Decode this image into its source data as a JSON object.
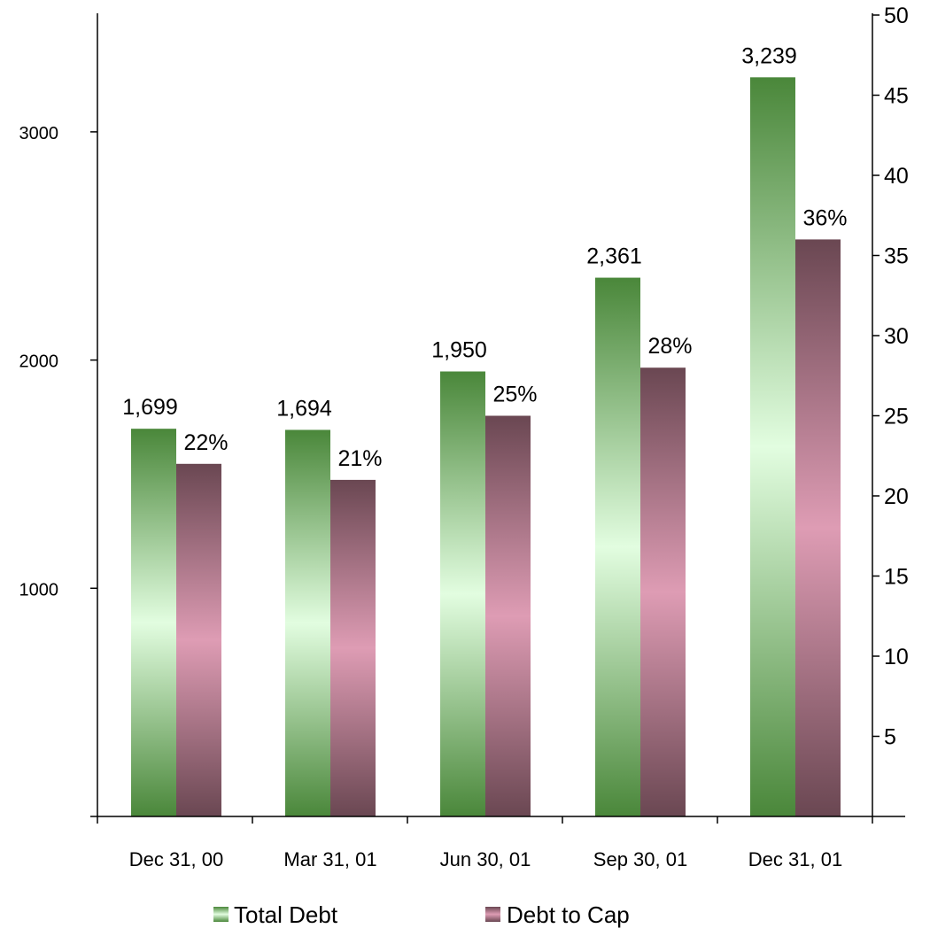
{
  "chart_data": {
    "type": "bar",
    "categories": [
      "Dec 31, 00",
      "Mar 31, 01",
      "Jun 30, 01",
      "Sep 30, 01",
      "Dec 31, 01"
    ],
    "series": [
      {
        "name": "Total Debt",
        "axis": "left",
        "values": [
          1699,
          1694,
          1950,
          2361,
          3239
        ],
        "labels": [
          "1,699",
          "1,694",
          "1,950",
          "2,361",
          "3,239"
        ],
        "color_dark": "#4a873a",
        "color_light": "#e2fde0"
      },
      {
        "name": "Debt to Cap",
        "axis": "right",
        "values": [
          22,
          21,
          25,
          28,
          36
        ],
        "labels": [
          "22%",
          "21%",
          "25%",
          "28%",
          "36%"
        ],
        "color_dark": "#6a4752",
        "color_light": "#de9cb4"
      }
    ],
    "y_left": {
      "ticks": [
        1000,
        2000,
        3000
      ],
      "range": [
        0,
        3500
      ]
    },
    "y_right": {
      "ticks": [
        5,
        10,
        15,
        20,
        25,
        30,
        35,
        40,
        45,
        50
      ],
      "range": [
        0,
        50
      ]
    },
    "xlabel": "",
    "ylabel": "",
    "legend_position": "bottom",
    "grid": false
  }
}
